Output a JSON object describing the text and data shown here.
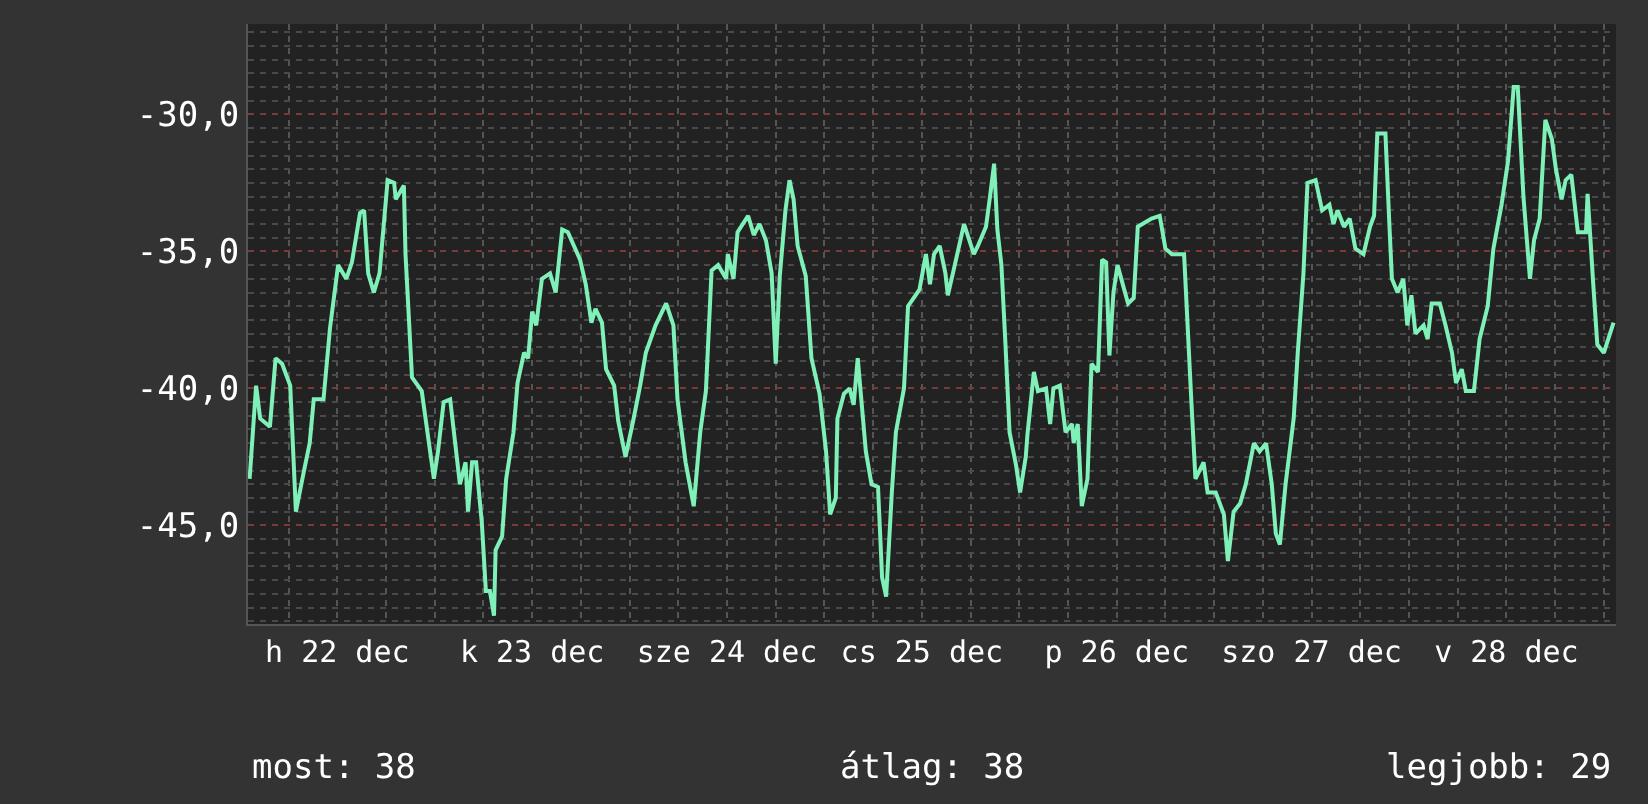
{
  "chart_data": {
    "type": "line",
    "x": [
      "--12-22T01:12",
      "--12-22T02:00",
      "--12-22T02:30",
      "--12-22T03:42",
      "--12-22T04:24",
      "--12-22T05:12",
      "--12-22T06:12",
      "--12-22T06:54",
      "--12-22T07:54",
      "--12-22T08:36",
      "--12-22T09:06",
      "--12-22T10:18",
      "--12-22T11:06",
      "--12-22T12:06",
      "--12-22T13:06",
      "--12-22T13:48",
      "--12-22T14:48",
      "--12-22T15:18",
      "--12-22T15:48",
      "--12-22T16:30",
      "--12-22T17:12",
      "--12-22T18:12",
      "--12-22T19:00",
      "--12-22T19:12",
      "--12-22T20:12",
      "--12-22T20:24",
      "--12-22T21:12",
      "--12-22T22:24",
      "--12-22T23:54",
      "--12-23T00:24",
      "--12-23T01:06",
      "--12-23T01:54",
      "--12-23T03:06",
      "--12-23T03:48",
      "--12-23T04:06",
      "--12-23T04:36",
      "--12-23T05:06",
      "--12-23T05:48",
      "--12-23T06:18",
      "--12-23T06:48",
      "--12-23T07:18",
      "--12-23T07:30",
      "--12-23T08:18",
      "--12-23T08:48",
      "--12-23T09:42",
      "--12-23T10:12",
      "--12-23T11:00",
      "--12-23T11:30",
      "--12-23T12:00",
      "--12-23T12:30",
      "--12-23T13:12",
      "--12-23T14:12",
      "--12-23T14:54",
      "--12-23T15:42",
      "--12-23T16:24",
      "--12-23T17:54",
      "--12-23T18:36",
      "--12-23T19:18",
      "--12-23T19:48",
      "--12-23T20:36",
      "--12-23T21:06",
      "--12-23T22:06",
      "--12-23T22:36",
      "--12-23T23:30",
      "--12-24T00:30",
      "--12-24T01:18",
      "--12-24T02:00",
      "--12-24T03:12",
      "--12-24T04:30",
      "--12-24T05:24",
      "--12-24T05:54",
      "--12-24T06:54",
      "--12-24T07:54",
      "--12-24T08:42",
      "--12-24T09:24",
      "--12-24T10:06",
      "--12-24T10:54",
      "--12-24T11:54",
      "--12-24T12:06",
      "--12-24T12:48",
      "--12-24T13:18",
      "--12-24T14:36",
      "--12-24T15:18",
      "--12-24T16:00",
      "--12-24T16:48",
      "--12-24T17:30",
      "--12-24T18:00",
      "--12-24T18:30",
      "--12-24T19:12",
      "--12-24T19:42",
      "--12-24T20:12",
      "--12-24T20:42",
      "--12-24T21:42",
      "--12-24T22:24",
      "--12-24T23:24",
      "--12-25T00:12",
      "--12-25T00:42",
      "--12-25T01:24",
      "--12-25T01:36",
      "--12-25T02:24",
      "--12-25T03:06",
      "--12-25T03:36",
      "--12-25T04:06",
      "--12-25T05:06",
      "--12-25T05:48",
      "--12-25T06:36",
      "--12-25T07:06",
      "--12-25T07:36",
      "--12-25T08:18",
      "--12-25T08:48",
      "--12-25T09:48",
      "--12-25T10:18",
      "--12-25T11:42",
      "--12-25T12:30",
      "--12-25T13:00",
      "--12-25T13:30",
      "--12-25T14:12",
      "--12-25T14:54",
      "--12-25T15:12",
      "--12-25T15:54",
      "--12-25T17:12",
      "--12-25T18:24",
      "--12-25T18:54",
      "--12-25T19:54",
      "--12-25T20:24",
      "--12-25T20:54",
      "--12-25T21:18",
      "--12-25T21:48",
      "--12-25T22:18",
      "--12-25T22:48",
      "--12-25T23:36",
      "--12-26T00:06",
      "--12-26T00:48",
      "--12-26T01:00",
      "--12-26T01:48",
      "--12-26T02:18",
      "--12-26T03:18",
      "--12-26T03:48",
      "--12-26T04:12",
      "--12-26T05:00",
      "--12-26T05:42",
      "--12-26T06:30",
      "--12-26T06:42",
      "--12-26T07:12",
      "--12-26T07:42",
      "--12-26T08:24",
      "--12-26T08:54",
      "--12-26T09:42",
      "--12-26T10:12",
      "--12-26T10:42",
      "--12-26T11:06",
      "--12-26T11:36",
      "--12-26T12:06",
      "--12-26T13:24",
      "--12-26T14:06",
      "--12-26T14:36",
      "--12-26T16:18",
      "--12-26T17:18",
      "--12-26T18:00",
      "--12-26T18:48",
      "--12-26T20:18",
      "--12-26T20:42",
      "--12-26T21:12",
      "--12-26T21:42",
      "--12-26T22:42",
      "--12-26T23:12",
      "--12-27T00:12",
      "--12-27T01:12",
      "--12-27T01:42",
      "--12-27T02:24",
      "--12-27T03:12",
      "--12-27T03:54",
      "--12-27T04:54",
      "--12-27T05:36",
      "--12-27T06:24",
      "--12-27T07:06",
      "--12-27T07:36",
      "--12-27T08:06",
      "--12-27T08:48",
      "--12-27T09:48",
      "--12-27T10:18",
      "--12-27T11:00",
      "--12-27T11:30",
      "--12-27T12:30",
      "--12-27T13:18",
      "--12-27T14:12",
      "--12-27T14:42",
      "--12-27T15:12",
      "--12-27T16:00",
      "--12-27T16:42",
      "--12-27T17:24",
      "--12-27T18:24",
      "--12-27T19:12",
      "--12-27T19:42",
      "--12-27T20:06",
      "--12-27T21:06",
      "--12-27T21:36",
      "--12-27T21:54",
      "--12-27T22:36",
      "--12-27T23:18",
      "--12-27T23:48",
      "--12-28T00:18",
      "--12-28T00:48",
      "--12-28T01:48",
      "--12-28T02:18",
      "--12-28T02:48",
      "--12-28T03:48",
      "--12-28T04:30",
      "--12-28T05:18",
      "--12-28T05:48",
      "--12-28T06:30",
      "--12-28T07:00",
      "--12-28T08:00",
      "--12-28T08:42",
      "--12-28T09:42",
      "--12-28T10:24",
      "--12-28T11:24",
      "--12-28T12:12",
      "--12-28T12:54",
      "--12-28T13:24",
      "--12-28T14:06",
      "--12-28T14:54",
      "--12-28T15:24",
      "--12-28T16:06",
      "--12-28T16:48",
      "--12-28T17:36",
      "--12-28T18:06",
      "--12-28T18:48",
      "--12-28T19:18",
      "--12-28T20:00",
      "--12-28T20:48",
      "--12-28T21:48",
      "--12-28T22:00",
      "--12-28T22:42",
      "--12-28T23:12",
      "--12-29T00:00",
      "--12-29T01:12"
    ],
    "series": [
      {
        "color": "#7ef0b8",
        "values": [
          -43.3,
          -39.9,
          -41.1,
          -41.4,
          -38.9,
          -39.1,
          -39.9,
          -44.5,
          -43.0,
          -42.0,
          -40.4,
          -40.4,
          -37.8,
          -35.5,
          -36.0,
          -35.4,
          -33.6,
          -33.5,
          -35.8,
          -36.5,
          -35.8,
          -32.4,
          -32.5,
          -33.1,
          -32.6,
          -35.1,
          -39.6,
          -40.1,
          -43.3,
          -42.3,
          -40.5,
          -40.4,
          -43.5,
          -42.7,
          -44.5,
          -42.7,
          -42.7,
          -44.9,
          -47.4,
          -47.4,
          -48.3,
          -45.9,
          -45.4,
          -43.3,
          -41.6,
          -39.8,
          -38.7,
          -38.9,
          -37.2,
          -37.7,
          -36.0,
          -35.8,
          -36.5,
          -34.2,
          -34.3,
          -35.3,
          -36.2,
          -37.6,
          -37.1,
          -37.6,
          -39.3,
          -39.9,
          -41.2,
          -42.5,
          -41.1,
          -39.9,
          -38.7,
          -37.7,
          -36.9,
          -37.7,
          -40.4,
          -42.7,
          -44.3,
          -41.6,
          -40.1,
          -35.7,
          -35.5,
          -36.0,
          -35.1,
          -36.0,
          -34.3,
          -33.7,
          -34.4,
          -34.0,
          -34.6,
          -35.8,
          -39.1,
          -35.9,
          -33.5,
          -32.4,
          -33.1,
          -34.8,
          -35.9,
          -38.9,
          -40.2,
          -42.3,
          -44.6,
          -44.0,
          -41.1,
          -40.2,
          -40.0,
          -40.6,
          -38.9,
          -42.3,
          -43.5,
          -43.6,
          -46.9,
          -47.6,
          -43.8,
          -41.6,
          -40.0,
          -37.0,
          -36.4,
          -35.1,
          -36.2,
          -35.1,
          -34.8,
          -35.8,
          -36.6,
          -35.7,
          -34.0,
          -35.1,
          -34.8,
          -34.1,
          -33.0,
          -31.8,
          -34.2,
          -35.5,
          -38.4,
          -41.6,
          -42.8,
          -43.8,
          -42.5,
          -41.7,
          -39.4,
          -40.1,
          -40.0,
          -41.3,
          -40.0,
          -39.9,
          -41.6,
          -41.3,
          -42.0,
          -41.3,
          -44.3,
          -43.3,
          -39.1,
          -39.4,
          -35.3,
          -35.4,
          -38.8,
          -36.5,
          -35.5,
          -36.9,
          -36.7,
          -34.1,
          -33.8,
          -33.7,
          -34.9,
          -35.1,
          -35.1,
          -37.5,
          -40.5,
          -43.3,
          -42.7,
          -43.8,
          -43.8,
          -44.6,
          -46.3,
          -44.5,
          -44.2,
          -43.5,
          -42.0,
          -42.3,
          -42.0,
          -43.5,
          -45.3,
          -45.7,
          -43.5,
          -41.1,
          -38.7,
          -35.8,
          -32.5,
          -32.4,
          -33.5,
          -33.3,
          -34.0,
          -33.5,
          -34.1,
          -33.8,
          -34.9,
          -35.1,
          -34.1,
          -33.7,
          -30.7,
          -30.7,
          -34.1,
          -36.0,
          -36.5,
          -36.0,
          -37.7,
          -36.6,
          -38.0,
          -37.7,
          -38.2,
          -36.9,
          -36.9,
          -37.7,
          -38.7,
          -39.8,
          -39.3,
          -40.1,
          -40.1,
          -38.2,
          -37.0,
          -34.9,
          -33.3,
          -31.7,
          -29.0,
          -29.0,
          -33.0,
          -36.0,
          -34.6,
          -33.8,
          -30.2,
          -30.9,
          -32.0,
          -33.1,
          -32.4,
          -32.2,
          -34.3,
          -34.3,
          -32.9,
          -36.2,
          -38.4,
          -38.7,
          -37.6
        ]
      }
    ],
    "xlim": [
      "--12-22T01:00",
      "--12-29T01:30"
    ],
    "xticks": [
      {
        "value": "--12-22T12:00",
        "label": "h 22 dec"
      },
      {
        "value": "--12-23T12:00",
        "label": "k 23 dec"
      },
      {
        "value": "--12-24T12:00",
        "label": "sze 24 dec"
      },
      {
        "value": "--12-25T12:00",
        "label": "cs 25 dec"
      },
      {
        "value": "--12-26T12:00",
        "label": "p 26 dec"
      },
      {
        "value": "--12-27T12:00",
        "label": "szo 27 dec"
      },
      {
        "value": "--12-28T12:00",
        "label": "v 28 dec"
      }
    ],
    "ylim": [
      -48.6,
      -26.7
    ],
    "yticks": [
      {
        "value": -30,
        "label": "-30,0"
      },
      {
        "value": -35,
        "label": "-35,0"
      },
      {
        "value": -40,
        "label": "-40,0"
      },
      {
        "value": -45,
        "label": "-45,0"
      }
    ],
    "grid": true,
    "line_style": "solid",
    "annotations": [
      "most: 38",
      "átlag: 38",
      "legjobb: 29"
    ]
  }
}
